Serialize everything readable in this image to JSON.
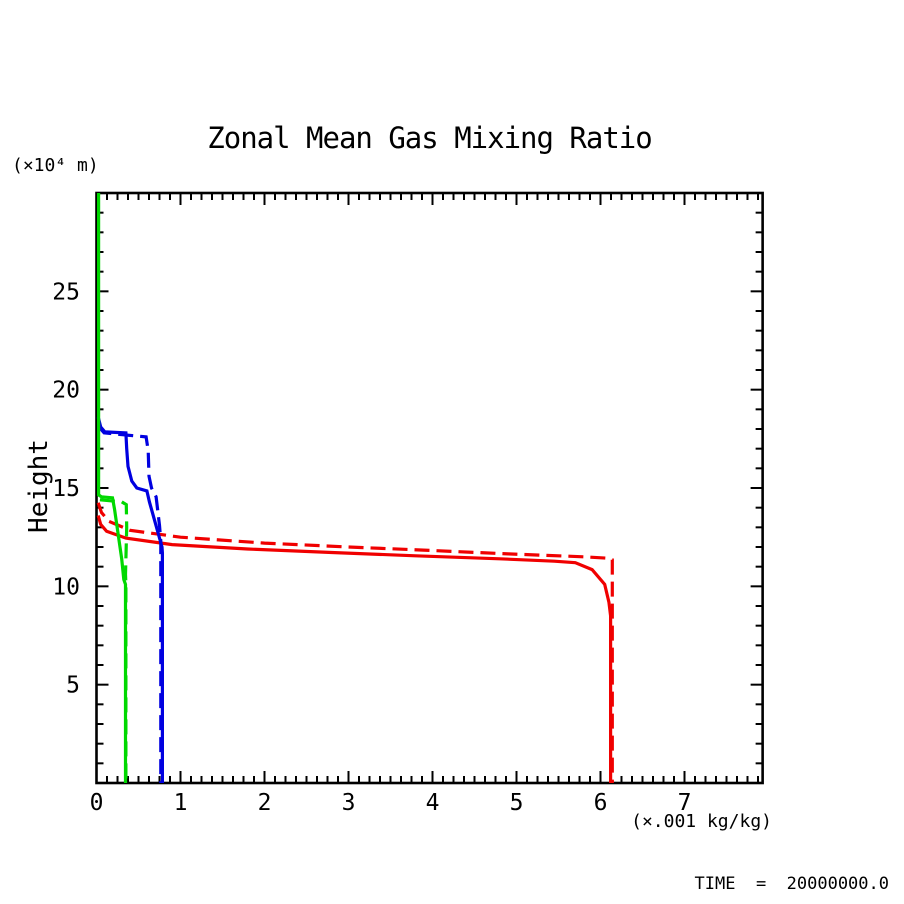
{
  "footer": {
    "time_label": "TIME  =  20000000.0"
  },
  "chart_data": {
    "type": "line",
    "title": "Zonal Mean Gas Mixing Ratio",
    "xlabel": "(×.001 kg/kg)",
    "ylabel": "Height",
    "y_unit_label": "(×10⁴ m)",
    "xlim": [
      0,
      7.93
    ],
    "ylim": [
      0,
      30
    ],
    "x_major_ticks": [
      0,
      1,
      2,
      3,
      4,
      5,
      6,
      7
    ],
    "x_minor_step": 0.125,
    "y_major_ticks": [
      5,
      10,
      15,
      20,
      25
    ],
    "y_minor_step": 1,
    "grid": false,
    "legend_position": "none",
    "axis_color": "#000000",
    "background_color": "#ffffff",
    "series": [
      {
        "name": "red-solid",
        "color": "#f00000",
        "style": "solid",
        "points": [
          [
            0.02,
            13.6
          ],
          [
            0.05,
            13.15
          ],
          [
            0.12,
            12.8
          ],
          [
            0.35,
            12.45
          ],
          [
            0.9,
            12.12
          ],
          [
            1.8,
            11.9
          ],
          [
            2.8,
            11.72
          ],
          [
            3.8,
            11.55
          ],
          [
            4.8,
            11.4
          ],
          [
            5.45,
            11.28
          ],
          [
            5.7,
            11.2
          ],
          [
            5.9,
            10.85
          ],
          [
            6.05,
            10.1
          ],
          [
            6.1,
            9.2
          ],
          [
            6.12,
            8.5
          ],
          [
            6.12,
            0
          ]
        ]
      },
      {
        "name": "red-dashed",
        "color": "#f00000",
        "style": "dashed",
        "points": [
          [
            0.02,
            14.25
          ],
          [
            0.06,
            13.75
          ],
          [
            0.15,
            13.3
          ],
          [
            0.4,
            12.85
          ],
          [
            1.0,
            12.5
          ],
          [
            2.0,
            12.2
          ],
          [
            3.0,
            12.0
          ],
          [
            4.0,
            11.82
          ],
          [
            4.9,
            11.65
          ],
          [
            5.8,
            11.5
          ],
          [
            6.08,
            11.43
          ],
          [
            6.14,
            11.35
          ],
          [
            6.14,
            0
          ]
        ]
      },
      {
        "name": "blue-solid",
        "color": "#0000e0",
        "style": "solid",
        "points": [
          [
            0.02,
            18.6
          ],
          [
            0.05,
            18.1
          ],
          [
            0.1,
            17.85
          ],
          [
            0.35,
            17.8
          ],
          [
            0.36,
            17.0
          ],
          [
            0.375,
            16.1
          ],
          [
            0.42,
            15.35
          ],
          [
            0.48,
            15.0
          ],
          [
            0.6,
            14.85
          ],
          [
            0.63,
            14.3
          ],
          [
            0.78,
            12.0
          ],
          [
            0.785,
            11.7
          ],
          [
            0.785,
            0
          ]
        ]
      },
      {
        "name": "blue-dashed",
        "color": "#0000e0",
        "style": "dashed",
        "points": [
          [
            0.03,
            18.1
          ],
          [
            0.09,
            17.8
          ],
          [
            0.59,
            17.6
          ],
          [
            0.615,
            16.9
          ],
          [
            0.625,
            15.6
          ],
          [
            0.655,
            15.0
          ],
          [
            0.71,
            14.55
          ],
          [
            0.75,
            13.1
          ],
          [
            0.765,
            12.3
          ],
          [
            0.765,
            0
          ]
        ]
      },
      {
        "name": "green-solid",
        "color": "#00d800",
        "style": "solid",
        "points": [
          [
            0.025,
            30
          ],
          [
            0.025,
            14.65
          ],
          [
            0.06,
            14.55
          ],
          [
            0.19,
            14.5
          ],
          [
            0.215,
            13.9
          ],
          [
            0.3,
            11.4
          ],
          [
            0.325,
            10.35
          ],
          [
            0.345,
            10.1
          ],
          [
            0.345,
            0
          ]
        ]
      },
      {
        "name": "green-dashed",
        "color": "#00d800",
        "style": "dashed",
        "points": [
          [
            0.04,
            14.4
          ],
          [
            0.3,
            14.3
          ],
          [
            0.355,
            14.15
          ],
          [
            0.36,
            13.0
          ],
          [
            0.345,
            10.6
          ],
          [
            0.35,
            10.1
          ],
          [
            0.35,
            0
          ]
        ]
      }
    ]
  }
}
